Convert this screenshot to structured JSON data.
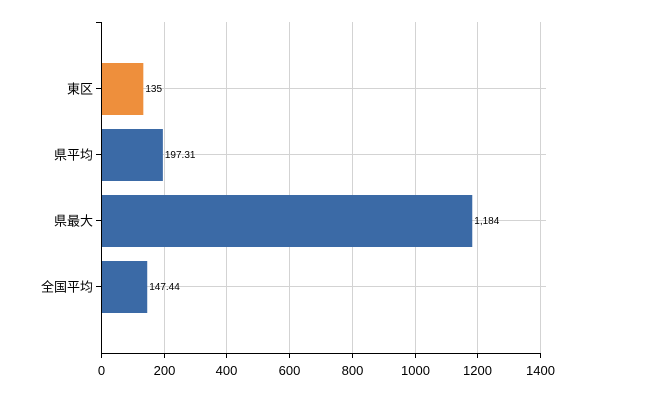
{
  "chart_data": {
    "type": "bar",
    "orientation": "horizontal",
    "categories": [
      "東区",
      "県平均",
      "県最大",
      "全国平均"
    ],
    "values": [
      135,
      197.31,
      1184,
      147.44
    ],
    "value_labels": [
      "135",
      "197.31",
      "1,184",
      "147.44"
    ],
    "bar_colors": [
      "#ee8f3c",
      "#3b6aa6",
      "#3b6aa6",
      "#3b6aa6"
    ],
    "xlim": [
      0,
      1400
    ],
    "x_ticks": [
      0,
      200,
      400,
      600,
      800,
      1000,
      1200,
      1400
    ],
    "x_tick_labels": [
      "0",
      "200",
      "400",
      "600",
      "800",
      "1000",
      "1200",
      "1400"
    ],
    "grid": true,
    "grid_color": "#d3d3d3",
    "title": "",
    "xlabel": "",
    "ylabel": ""
  }
}
